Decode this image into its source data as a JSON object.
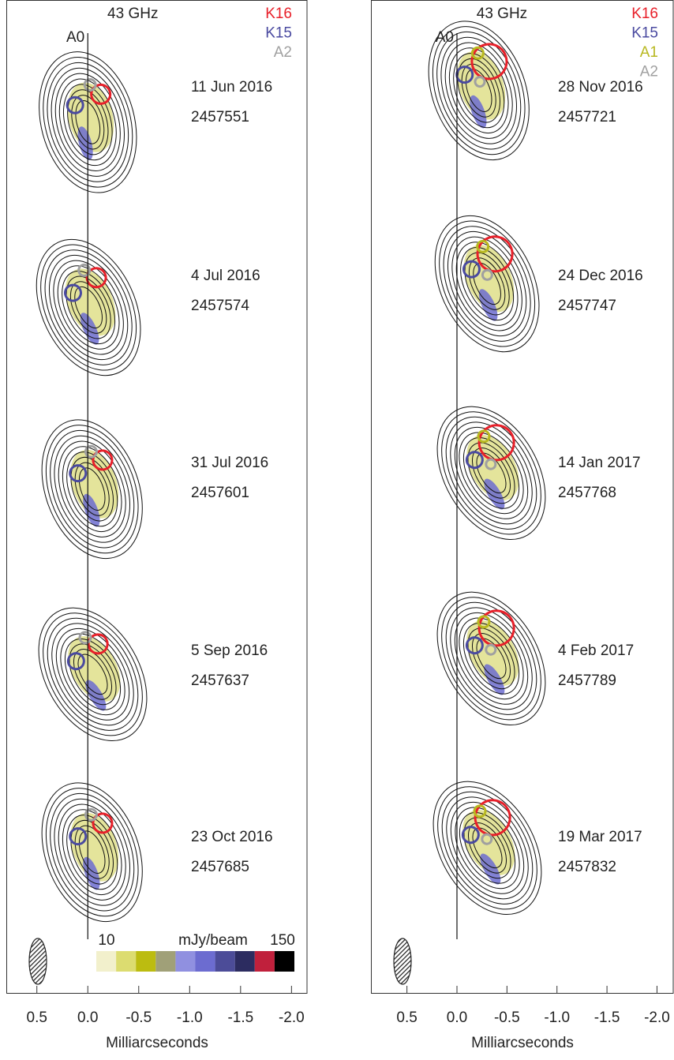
{
  "panels": [
    {
      "frequency": "43 GHz",
      "core_label": "A0",
      "legend": [
        {
          "name": "K16",
          "color": "#e8202a"
        },
        {
          "name": "K15",
          "color": "#4a4aa0"
        },
        {
          "name": "A2",
          "color": "#a0a0a0"
        }
      ],
      "epochs": [
        {
          "date": "11 Jun 2016",
          "jd": "2457551"
        },
        {
          "date": "4 Jul 2016",
          "jd": "2457574"
        },
        {
          "date": "31 Jul 2016",
          "jd": "2457601"
        },
        {
          "date": "5 Sep 2016",
          "jd": "2457637"
        },
        {
          "date": "23 Oct 2016",
          "jd": "2457685"
        }
      ],
      "xlim": [
        0.8,
        -2.16
      ],
      "xticks": [
        0.5,
        {
          "value": 0.0,
          "label": "0.0"
        },
        -0.5,
        {
          "value": -1.0,
          "label": "-1.0"
        },
        -1.5,
        {
          "value": -2.0,
          "label": "-2.0"
        }
      ],
      "xlabel": "Milliarcseconds"
    },
    {
      "frequency": "43 GHz",
      "core_label": "A0",
      "legend": [
        {
          "name": "K16",
          "color": "#e8202a"
        },
        {
          "name": "K15",
          "color": "#4a4aa0"
        },
        {
          "name": "A1",
          "color": "#b8b820"
        },
        {
          "name": "A2",
          "color": "#a0a0a0"
        }
      ],
      "epochs": [
        {
          "date": "28 Nov 2016",
          "jd": "2457721"
        },
        {
          "date": "24 Dec 2016",
          "jd": "2457747"
        },
        {
          "date": "14 Jan 2017",
          "jd": "2457768"
        },
        {
          "date": "4 Feb 2017",
          "jd": "2457789"
        },
        {
          "date": "19 Mar 2017",
          "jd": "2457832"
        }
      ],
      "xlim": [
        0.86,
        -2.17
      ],
      "xticks": [
        0.5,
        {
          "value": 0.0,
          "label": "0.0"
        },
        -0.5,
        {
          "value": -1.0,
          "label": "-1.0"
        },
        -1.5,
        {
          "value": -2.0,
          "label": "-2.0"
        }
      ],
      "xlabel": "Milliarcseconds"
    }
  ],
  "colorbar": {
    "min": 10,
    "max": 150,
    "unit": "mJy/beam",
    "colors": [
      "#f2f0cc",
      "#dcdc70",
      "#bcbc10",
      "#a0a078",
      "#9090e0",
      "#6c6cd0",
      "#4c4c98",
      "#2c2c60",
      "#c0203c",
      "#000000"
    ]
  }
}
